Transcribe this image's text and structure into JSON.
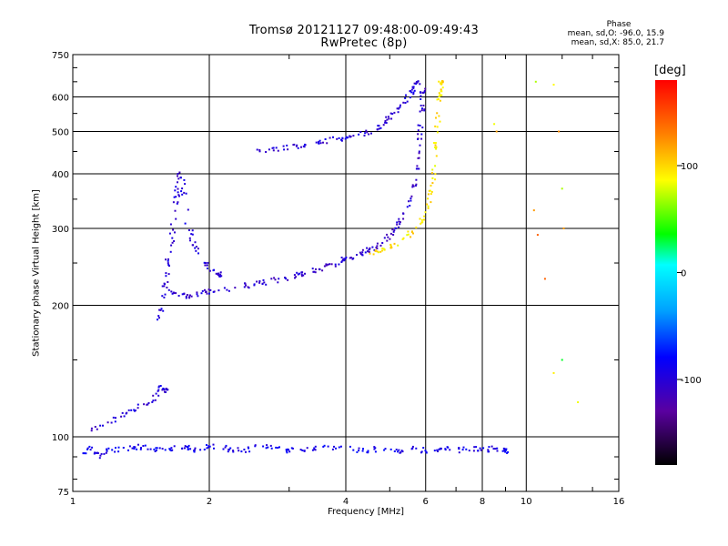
{
  "title": {
    "line1": "Tromsø 20121127 09:48:00-09:49:43",
    "line2": "RwPretec (8p)"
  },
  "phase_box": {
    "header": "Phase",
    "line_o": "mean, sd,O: -96.0, 15.9",
    "line_x": "mean, sd,X: 85.0, 21.7"
  },
  "colorbar": {
    "label": "[deg]",
    "ticks": [
      {
        "value": 100,
        "label": "100"
      },
      {
        "value": 0,
        "label": "0"
      },
      {
        "value": -100,
        "label": "-100"
      }
    ],
    "range": [
      -180,
      180
    ]
  },
  "chart_data": {
    "type": "scatter",
    "title": "Tromsø 20121127 09:48:00-09:49:43",
    "subtitle": "RwPretec (8p)",
    "xlabel": "Frequency [MHz]",
    "ylabel": "Stationary phase Virtual Height [km]",
    "xscale": "log",
    "yscale": "log",
    "xlim": [
      1,
      16
    ],
    "ylim": [
      75,
      750
    ],
    "xticks": [
      1,
      2,
      4,
      6,
      8,
      10,
      16
    ],
    "xtick_labels": [
      "1",
      "2",
      "4",
      "6",
      "8",
      "10",
      "16"
    ],
    "yticks": [
      75,
      100,
      200,
      300,
      400,
      500,
      600,
      750
    ],
    "ytick_labels": [
      "75",
      "100",
      "200",
      "300",
      "400",
      "500",
      "600",
      "750"
    ],
    "grid": true,
    "color_dimension": "phase [deg]",
    "series": [
      {
        "values": [
          [
            1.05,
            92
          ],
          [
            1.1,
            95
          ],
          [
            1.15,
            90
          ],
          [
            1.2,
            94
          ],
          [
            1.3,
            93
          ],
          [
            1.4,
            95
          ],
          [
            1.5,
            94
          ],
          [
            1.6,
            93
          ],
          [
            1.7,
            95
          ],
          [
            1.8,
            94
          ],
          [
            1.9,
            93
          ],
          [
            2.0,
            95
          ],
          [
            2.2,
            94
          ],
          [
            2.4,
            93
          ],
          [
            2.6,
            95
          ],
          [
            2.8,
            94
          ],
          [
            3.0,
            93
          ],
          [
            3.3,
            94
          ],
          [
            3.6,
            95
          ],
          [
            4.0,
            94
          ],
          [
            4.4,
            93
          ],
          [
            4.8,
            94
          ],
          [
            5.2,
            93
          ],
          [
            5.6,
            94
          ],
          [
            6.0,
            93
          ],
          [
            6.5,
            94
          ],
          [
            7.0,
            93
          ],
          [
            7.5,
            94
          ],
          [
            8.0,
            93
          ],
          [
            8.5,
            94
          ],
          [
            9.0,
            93
          ]
        ],
        "phase": -90
      },
      {
        "values": [
          [
            1.1,
            103
          ],
          [
            1.2,
            108
          ],
          [
            1.3,
            113
          ],
          [
            1.4,
            118
          ],
          [
            1.5,
            120
          ],
          [
            1.55,
            130
          ],
          [
            1.6,
            128
          ]
        ],
        "phase": -100
      },
      {
        "values": [
          [
            1.55,
            185
          ],
          [
            1.58,
            200
          ],
          [
            1.6,
            225
          ],
          [
            1.62,
            250
          ],
          [
            1.65,
            280
          ],
          [
            1.68,
            320
          ],
          [
            1.7,
            360
          ],
          [
            1.72,
            400
          ],
          [
            1.75,
            380
          ],
          [
            1.8,
            300
          ],
          [
            1.85,
            280
          ],
          [
            1.9,
            260
          ],
          [
            2.0,
            245
          ],
          [
            2.1,
            235
          ]
        ],
        "phase": -100
      },
      {
        "values": [
          [
            1.6,
            215
          ],
          [
            1.7,
            212
          ],
          [
            1.8,
            210
          ],
          [
            1.9,
            212
          ],
          [
            2.0,
            215
          ],
          [
            2.2,
            218
          ],
          [
            2.4,
            222
          ],
          [
            2.6,
            225
          ],
          [
            2.8,
            228
          ],
          [
            3.0,
            232
          ],
          [
            3.2,
            236
          ],
          [
            3.4,
            240
          ],
          [
            3.6,
            245
          ],
          [
            3.8,
            250
          ],
          [
            4.0,
            255
          ],
          [
            4.2,
            260
          ],
          [
            4.4,
            265
          ],
          [
            4.6,
            270
          ],
          [
            4.8,
            278
          ],
          [
            5.0,
            290
          ],
          [
            5.2,
            305
          ],
          [
            5.4,
            325
          ],
          [
            5.6,
            355
          ],
          [
            5.7,
            390
          ],
          [
            5.8,
            440
          ],
          [
            5.85,
            500
          ],
          [
            5.9,
            560
          ],
          [
            5.92,
            620
          ]
        ],
        "phase": -105
      },
      {
        "values": [
          [
            2.5,
            450
          ],
          [
            2.8,
            455
          ],
          [
            3.0,
            460
          ],
          [
            3.2,
            465
          ],
          [
            3.5,
            475
          ],
          [
            3.8,
            480
          ],
          [
            4.0,
            485
          ],
          [
            4.2,
            490
          ],
          [
            4.5,
            500
          ],
          [
            4.8,
            520
          ],
          [
            5.0,
            540
          ],
          [
            5.2,
            560
          ],
          [
            5.4,
            590
          ],
          [
            5.6,
            620
          ],
          [
            5.75,
            650
          ]
        ],
        "phase": -100
      },
      {
        "values": [
          [
            4.5,
            262
          ],
          [
            4.8,
            268
          ],
          [
            5.0,
            272
          ],
          [
            5.3,
            280
          ],
          [
            5.6,
            295
          ],
          [
            5.9,
            315
          ],
          [
            6.1,
            345
          ],
          [
            6.2,
            380
          ],
          [
            6.3,
            430
          ],
          [
            6.35,
            490
          ],
          [
            6.4,
            550
          ],
          [
            6.45,
            610
          ],
          [
            6.5,
            650
          ]
        ],
        "phase": 95
      },
      {
        "values": [
          [
            8.5,
            520
          ],
          [
            8.6,
            500
          ],
          [
            10.5,
            650
          ],
          [
            10.4,
            330
          ],
          [
            10.6,
            290
          ],
          [
            11.5,
            640
          ],
          [
            11.8,
            500
          ],
          [
            12.0,
            370
          ],
          [
            12.1,
            300
          ],
          [
            11.0,
            230
          ],
          [
            11.5,
            140
          ],
          [
            12.0,
            150
          ],
          [
            13.0,
            120
          ]
        ],
        "phase": 90
      }
    ]
  }
}
